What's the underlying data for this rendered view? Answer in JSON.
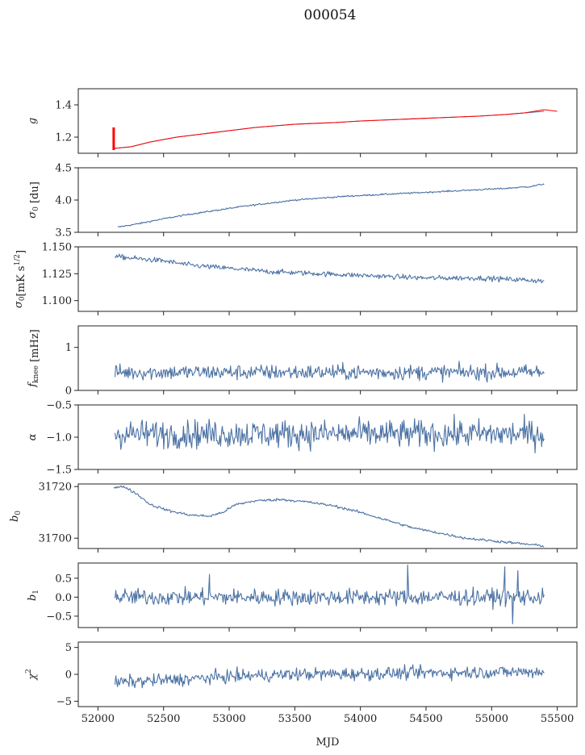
{
  "figure": {
    "suptitle": "000054",
    "xlabel": "MJD",
    "x_ticks": [
      52000,
      52500,
      53000,
      53500,
      54000,
      54500,
      55000,
      55500
    ],
    "xlim": [
      51850,
      55650
    ],
    "series_color": "#4c72a4",
    "fit_color": "#ff0000"
  },
  "chart_data": [
    {
      "type": "line",
      "ylabel": "g",
      "ylabel_sub": "",
      "ylabel_sup": "",
      "ylabel_tail": "",
      "ylim": [
        1.1,
        1.5
      ],
      "yticks": [
        "1.2",
        "1.4"
      ],
      "x_start": 52120,
      "x_end": 55400,
      "series": [
        {
          "x": [
            52120,
            52250,
            52400,
            52600,
            52800,
            53000,
            53200,
            53500,
            53800,
            54000,
            54300,
            54600,
            54900,
            55100,
            55250,
            55400
          ],
          "values": [
            1.13,
            1.14,
            1.17,
            1.2,
            1.22,
            1.24,
            1.26,
            1.28,
            1.29,
            1.3,
            1.31,
            1.32,
            1.33,
            1.34,
            1.35,
            1.36
          ]
        },
        {
          "name": "",
          "x": [
            52120,
            52250,
            52400,
            52600,
            52800,
            53000,
            53200,
            53500,
            53800,
            54000,
            54300,
            54600,
            54900,
            55100,
            55250,
            55400,
            55500
          ],
          "values": [
            1.13,
            1.14,
            1.17,
            1.2,
            1.22,
            1.24,
            1.26,
            1.28,
            1.29,
            1.3,
            1.31,
            1.32,
            1.33,
            1.34,
            1.35,
            1.37,
            1.36
          ]
        }
      ],
      "spike": {
        "x": 52120,
        "values": [
          1.12,
          1.26
        ]
      }
    },
    {
      "type": "line",
      "ylabel": "σ",
      "ylabel_sub": "0",
      "ylabel_sup": "",
      "ylabel_tail": " [du]",
      "ylim": [
        3.5,
        4.5
      ],
      "yticks": [
        "3.5",
        "4.0",
        "4.5"
      ],
      "x_start": 52150,
      "x_end": 55400,
      "series": [
        {
          "x": [
            52150,
            52300,
            52500,
            52700,
            52900,
            53100,
            53300,
            53500,
            53700,
            53900,
            54100,
            54300,
            54500,
            54700,
            54900,
            55100,
            55300,
            55400
          ],
          "values": [
            3.58,
            3.63,
            3.71,
            3.78,
            3.84,
            3.9,
            3.95,
            4.0,
            4.03,
            4.06,
            4.08,
            4.1,
            4.12,
            4.14,
            4.16,
            4.18,
            4.21,
            4.25
          ]
        }
      ],
      "noise": 0.006
    },
    {
      "type": "line",
      "ylabel": "σ",
      "ylabel_sub": "0",
      "ylabel_sup": "1/2",
      "ylabel_tail": "[mK s",
      "ylabel_end": "]",
      "ylim": [
        1.09,
        1.15
      ],
      "yticks": [
        "1.100",
        "1.125",
        "1.150"
      ],
      "x_start": 52130,
      "x_end": 55400,
      "series": [
        {
          "x": [
            52130,
            52300,
            52500,
            52700,
            52900,
            53100,
            53300,
            53500,
            53700,
            53900,
            54100,
            54300,
            54500,
            54700,
            54900,
            55100,
            55300,
            55400
          ],
          "values": [
            1.141,
            1.139,
            1.137,
            1.133,
            1.131,
            1.129,
            1.127,
            1.126,
            1.125,
            1.124,
            1.123,
            1.122,
            1.121,
            1.121,
            1.121,
            1.12,
            1.119,
            1.118
          ]
        }
      ],
      "noise": 0.0012
    },
    {
      "type": "line",
      "ylabel": "f",
      "ylabel_sub": "knee",
      "ylabel_sup": "",
      "ylabel_tail": " [mHz]",
      "ylim": [
        0,
        1.5
      ],
      "yticks": [
        "0",
        "1"
      ],
      "x_start": 52130,
      "x_end": 55400,
      "series": [
        {
          "x": [
            52130,
            55400
          ],
          "values": [
            0.42,
            0.42
          ]
        }
      ],
      "noise": 0.09
    },
    {
      "type": "line",
      "ylabel": "α",
      "ylabel_sub": "",
      "ylabel_sup": "",
      "ylabel_tail": "",
      "ylim": [
        -1.5,
        -0.5
      ],
      "yticks": [
        "−1.5",
        "−1.0",
        "−0.5"
      ],
      "x_start": 52130,
      "x_end": 55400,
      "series": [
        {
          "x": [
            52130,
            55400
          ],
          "values": [
            -0.95,
            -0.95
          ]
        }
      ],
      "noise": 0.11
    },
    {
      "type": "line",
      "ylabel": "b",
      "ylabel_sub": "0",
      "ylabel_sup": "",
      "ylabel_tail": "",
      "ylim": [
        31696,
        31721
      ],
      "yticks": [
        "31700",
        "31720"
      ],
      "x_start": 52120,
      "x_end": 55400,
      "series": [
        {
          "x": [
            52120,
            52200,
            52300,
            52400,
            52550,
            52700,
            52850,
            52950,
            53050,
            53200,
            53400,
            53600,
            53800,
            54000,
            54200,
            54400,
            54600,
            54800,
            55000,
            55200,
            55400
          ],
          "values": [
            31719.5,
            31720,
            31717,
            31713,
            31710.5,
            31709,
            31708.5,
            31710,
            31713,
            31714.5,
            31715,
            31714,
            31712.5,
            31710,
            31707,
            31704,
            31702,
            31700,
            31699,
            31698,
            31697
          ]
        }
      ],
      "noise": 0.25
    },
    {
      "type": "line",
      "ylabel": "b",
      "ylabel_sub": "1",
      "ylabel_sup": "",
      "ylabel_tail": "",
      "ylim": [
        -0.8,
        0.9
      ],
      "yticks": [
        "−0.5",
        "0.0",
        "0.5"
      ],
      "x_start": 52130,
      "x_end": 55400,
      "series": [
        {
          "x": [
            52130,
            55400
          ],
          "values": [
            0.0,
            0.0
          ]
        }
      ],
      "noise": 0.11
    },
    {
      "type": "line",
      "ylabel": "χ",
      "ylabel_sub": "",
      "ylabel_sup": "2",
      "ylabel_tail": "",
      "ylim": [
        -6,
        6
      ],
      "yticks": [
        "−5",
        "0",
        "5"
      ],
      "x_start": 52130,
      "x_end": 55400,
      "series": [
        {
          "x": [
            52130,
            52600,
            53000,
            53500,
            54000,
            54500,
            55000,
            55400
          ],
          "values": [
            -1.5,
            -1.0,
            -0.4,
            0.0,
            0.1,
            0.3,
            0.4,
            0.5
          ]
        }
      ],
      "noise": 0.6
    }
  ]
}
